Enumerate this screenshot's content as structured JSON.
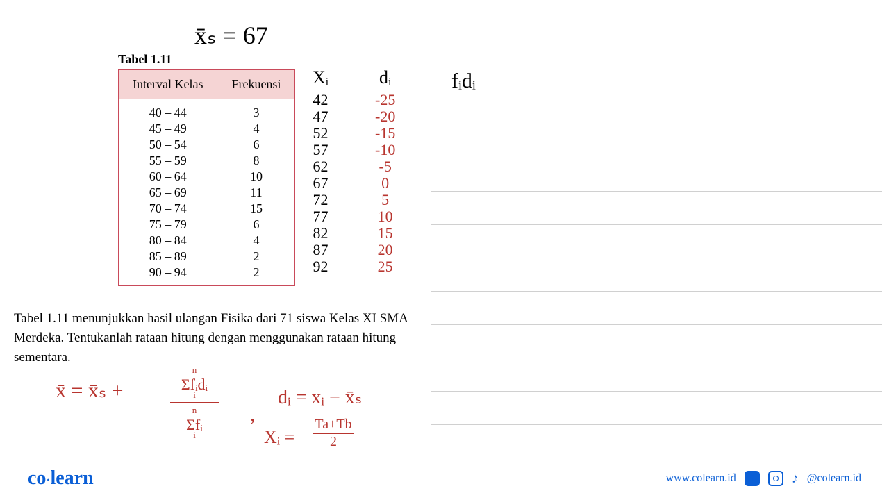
{
  "colors": {
    "table_border": "#c94a5a",
    "table_header_bg": "#f5d4d4",
    "handwriting_black": "#000000",
    "handwriting_red": "#b8352f",
    "ruled_line": "#d0d0d0",
    "logo_blue": "#0b5fd6",
    "footer_blue": "#0b5fd6",
    "text_black": "#1a1a1a"
  },
  "typography": {
    "table_fontsize": 18,
    "title_fontsize": 18,
    "handwriting_fontsize": 22,
    "description_fontsize": 19
  },
  "xs_annotation": "x̄ₛ = 67",
  "table": {
    "title": "Tabel 1.11",
    "headers": [
      "Interval Kelas",
      "Frekuensi"
    ],
    "rows": [
      [
        "40 – 44",
        "3"
      ],
      [
        "45 – 49",
        "4"
      ],
      [
        "50 – 54",
        "6"
      ],
      [
        "55 – 59",
        "8"
      ],
      [
        "60 – 64",
        "10"
      ],
      [
        "65 – 69",
        "11"
      ],
      [
        "70 – 74",
        "15"
      ],
      [
        "75 – 79",
        "6"
      ],
      [
        "80 – 84",
        "4"
      ],
      [
        "85 – 89",
        "2"
      ],
      [
        "90 – 94",
        "2"
      ]
    ]
  },
  "xi_column": {
    "header": "Xᵢ",
    "values": [
      "42",
      "47",
      "52",
      "57",
      "62",
      "67",
      "72",
      "77",
      "82",
      "87",
      "92"
    ],
    "color": "#000000"
  },
  "di_column": {
    "header": "dᵢ",
    "values": [
      "-25",
      "-20",
      "-15",
      "-10",
      "-5",
      "0",
      "5",
      "10",
      "15",
      "20",
      "25"
    ],
    "color": "#b8352f"
  },
  "fidi_header": "fᵢdᵢ",
  "description": "Tabel 1.11 menunjukkan hasil ulangan Fisika dari 71 siswa Kelas XI SMA Merdeka. Tentukanlah rataan hitung dengan menggunakan rataan hitung sementara.",
  "formulas": {
    "main": "x̄ = x̄ₛ +",
    "sum_top": "Σfᵢdᵢ",
    "sum_top_n": "n",
    "sum_top_i": "i",
    "sum_bot": "Σfᵢ",
    "sum_bot_n": "n",
    "sum_bot_i": "i",
    "di_formula": "dᵢ = xᵢ − x̄ₛ",
    "xi_formula": "Xᵢ =",
    "xi_frac_top": "Ta+Tb",
    "xi_frac_bot": "2"
  },
  "footer": {
    "logo_co": "co",
    "logo_dot": "·",
    "logo_learn": "learn",
    "url": "www.colearn.id",
    "handle": "@colearn.id"
  },
  "notebook": {
    "line_count": 10
  }
}
